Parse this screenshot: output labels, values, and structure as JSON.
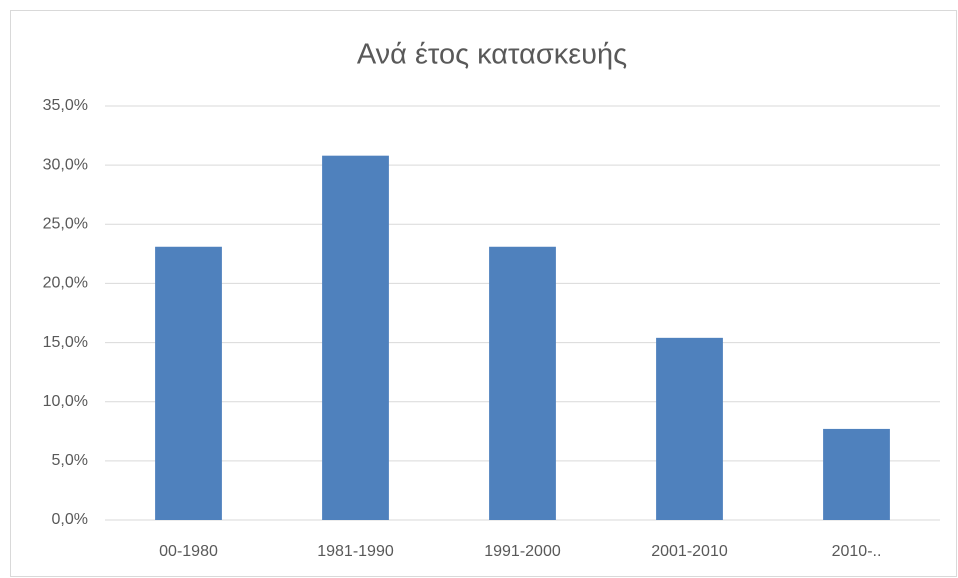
{
  "chart_data": {
    "type": "bar",
    "title": "Ανά έτος κατασκευής",
    "categories": [
      "00-1980",
      "1981-1990",
      "1991-2000",
      "2001-2010",
      "2010-.."
    ],
    "values": [
      23.1,
      30.8,
      23.1,
      15.4,
      7.7
    ],
    "color": "#4f81bd",
    "ylim": [
      0,
      35
    ],
    "yticks": [
      {
        "value": 0,
        "label": "0,0%"
      },
      {
        "value": 5,
        "label": "5,0%"
      },
      {
        "value": 10,
        "label": "10,0%"
      },
      {
        "value": 15,
        "label": "15,0%"
      },
      {
        "value": 20,
        "label": "20,0%"
      },
      {
        "value": 25,
        "label": "25,0%"
      },
      {
        "value": 30,
        "label": "30,0%"
      },
      {
        "value": 35,
        "label": "35,0%"
      }
    ],
    "grid": true
  }
}
